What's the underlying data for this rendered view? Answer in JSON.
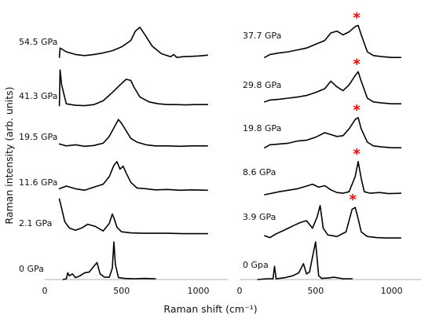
{
  "chart_data": {
    "type": "line",
    "xlabel": "Raman shift (cm⁻¹)",
    "ylabel": "Raman intensity (arb. units)",
    "marker_color": "#ff0000",
    "marker_symbol": "*",
    "panels": [
      {
        "id": "left",
        "xlim": [
          0,
          1100
        ],
        "xticks": [
          0,
          500,
          1000
        ],
        "series": [
          {
            "name": "54.5 GPa",
            "x": [
              95,
              100,
              140,
              200,
              260,
              320,
              380,
              440,
              500,
              560,
              590,
              620,
              650,
              700,
              760,
              820,
              840,
              860,
              900,
              950,
              1000,
              1060
            ],
            "y": [
              0.1,
              0.35,
              0.25,
              0.18,
              0.15,
              0.18,
              0.22,
              0.28,
              0.38,
              0.55,
              0.8,
              0.9,
              0.72,
              0.4,
              0.2,
              0.12,
              0.18,
              0.1,
              0.12,
              0.13,
              0.14,
              0.16
            ]
          },
          {
            "name": "41.3 GPa",
            "x": [
              95,
              100,
              110,
              140,
              200,
              260,
              320,
              380,
              440,
              490,
              530,
              560,
              580,
              620,
              680,
              740,
              800,
              860,
              920,
              980,
              1060
            ],
            "y": [
              0.05,
              1.0,
              0.6,
              0.1,
              0.06,
              0.05,
              0.08,
              0.18,
              0.4,
              0.6,
              0.75,
              0.72,
              0.55,
              0.28,
              0.15,
              0.1,
              0.08,
              0.08,
              0.07,
              0.08,
              0.08
            ]
          },
          {
            "name": "19.5 GPa",
            "x": [
              95,
              140,
              200,
              260,
              320,
              380,
              420,
              460,
              480,
              500,
              530,
              560,
              600,
              660,
              720,
              800,
              880,
              960,
              1060
            ],
            "y": [
              0.2,
              0.15,
              0.18,
              0.14,
              0.16,
              0.22,
              0.4,
              0.7,
              0.85,
              0.75,
              0.55,
              0.35,
              0.25,
              0.18,
              0.15,
              0.15,
              0.14,
              0.15,
              0.15
            ]
          },
          {
            "name": "11.6 GPa",
            "x": [
              95,
              140,
              200,
              260,
              320,
              380,
              420,
              450,
              470,
              490,
              510,
              530,
              560,
              600,
              660,
              720,
              800,
              880,
              960,
              1060
            ],
            "y": [
              0.18,
              0.25,
              0.18,
              0.14,
              0.22,
              0.3,
              0.5,
              0.8,
              0.9,
              0.7,
              0.78,
              0.6,
              0.35,
              0.2,
              0.18,
              0.15,
              0.16,
              0.14,
              0.15,
              0.14
            ]
          },
          {
            "name": "2.1 GPa",
            "x": [
              95,
              110,
              130,
              160,
              200,
              240,
              280,
              330,
              380,
              420,
              440,
              450,
              470,
              500,
              560,
              640,
              720,
              800,
              900,
              1000,
              1060
            ],
            "y": [
              0.95,
              0.7,
              0.35,
              0.18,
              0.12,
              0.18,
              0.28,
              0.22,
              0.1,
              0.3,
              0.55,
              0.45,
              0.2,
              0.08,
              0.05,
              0.04,
              0.04,
              0.04,
              0.03,
              0.03,
              0.03
            ]
          },
          {
            "name": "0 GPa",
            "x": [
              120,
              140,
              150,
              160,
              180,
              200,
              230,
              260,
              290,
              320,
              340,
              360,
              390,
              420,
              440,
              450,
              460,
              480,
              520,
              580,
              650,
              720
            ],
            "y": [
              0.0,
              0.02,
              0.18,
              0.1,
              0.15,
              0.05,
              0.1,
              0.18,
              0.2,
              0.35,
              0.45,
              0.15,
              0.06,
              0.06,
              0.3,
              1.0,
              0.4,
              0.05,
              0.03,
              0.02,
              0.03,
              0.02
            ]
          }
        ]
      },
      {
        "id": "right",
        "xlim": [
          0,
          1100
        ],
        "xticks": [
          0,
          500,
          1000
        ],
        "series": [
          {
            "name": "37.7 GPa",
            "x": [
              165,
              200,
              260,
              320,
              380,
              440,
              500,
              560,
              600,
              640,
              680,
              720,
              760,
              780,
              800,
              840,
              880,
              940,
              1000,
              1060
            ],
            "y": [
              0.1,
              0.18,
              0.22,
              0.25,
              0.3,
              0.35,
              0.45,
              0.55,
              0.75,
              0.8,
              0.7,
              0.78,
              0.92,
              0.95,
              0.7,
              0.25,
              0.15,
              0.12,
              0.1,
              0.1
            ],
            "marker_x": 780
          },
          {
            "name": "29.8 GPa",
            "x": [
              165,
              200,
              260,
              320,
              380,
              440,
              500,
              560,
              600,
              640,
              680,
              720,
              760,
              780,
              800,
              840,
              880,
              940,
              1000,
              1060
            ],
            "y": [
              0.15,
              0.2,
              0.22,
              0.25,
              0.28,
              0.32,
              0.4,
              0.5,
              0.7,
              0.55,
              0.45,
              0.6,
              0.85,
              0.95,
              0.7,
              0.25,
              0.15,
              0.12,
              0.1,
              0.1
            ],
            "marker_x": 780
          },
          {
            "name": "19.8 GPa",
            "x": [
              165,
              200,
              260,
              320,
              380,
              440,
              500,
              560,
              600,
              640,
              680,
              720,
              760,
              780,
              800,
              840,
              880,
              940,
              1000,
              1060
            ],
            "y": [
              0.1,
              0.18,
              0.2,
              0.22,
              0.28,
              0.3,
              0.38,
              0.5,
              0.45,
              0.4,
              0.42,
              0.6,
              0.85,
              0.9,
              0.6,
              0.25,
              0.15,
              0.12,
              0.1,
              0.1
            ],
            "marker_x": 780
          },
          {
            "name": "8.6 GPa",
            "x": [
              165,
              200,
              260,
              320,
              380,
              440,
              480,
              520,
              560,
              600,
              640,
              680,
              720,
              760,
              780,
              800,
              820,
              860,
              920,
              980,
              1060
            ],
            "y": [
              0.02,
              0.05,
              0.1,
              0.14,
              0.18,
              0.25,
              0.3,
              0.22,
              0.26,
              0.15,
              0.08,
              0.06,
              0.1,
              0.5,
              0.9,
              0.45,
              0.1,
              0.06,
              0.08,
              0.05,
              0.06
            ],
            "marker_x": 780
          },
          {
            "name": "3.9 GPa",
            "x": [
              165,
              200,
              240,
              280,
              320,
              360,
              400,
              440,
              480,
              510,
              530,
              550,
              580,
              640,
              700,
              740,
              760,
              780,
              800,
              840,
              900,
              960,
              1060
            ],
            "y": [
              0.1,
              0.05,
              0.15,
              0.22,
              0.3,
              0.38,
              0.45,
              0.5,
              0.3,
              0.6,
              0.9,
              0.3,
              0.12,
              0.08,
              0.2,
              0.8,
              0.85,
              0.55,
              0.2,
              0.08,
              0.05,
              0.04,
              0.04
            ],
            "marker_x": 755
          },
          {
            "name": "0 Gpa",
            "x": [
              120,
              150,
              180,
              220,
              230,
              240,
              260,
              300,
              350,
              390,
              420,
              440,
              460,
              480,
              500,
              520,
              540,
              580,
              620,
              680,
              740
            ],
            "y": [
              0.0,
              0.01,
              0.02,
              0.02,
              0.35,
              0.02,
              0.03,
              0.05,
              0.1,
              0.18,
              0.42,
              0.15,
              0.2,
              0.6,
              1.0,
              0.1,
              0.03,
              0.04,
              0.06,
              0.02,
              0.02
            ]
          }
        ]
      }
    ]
  }
}
